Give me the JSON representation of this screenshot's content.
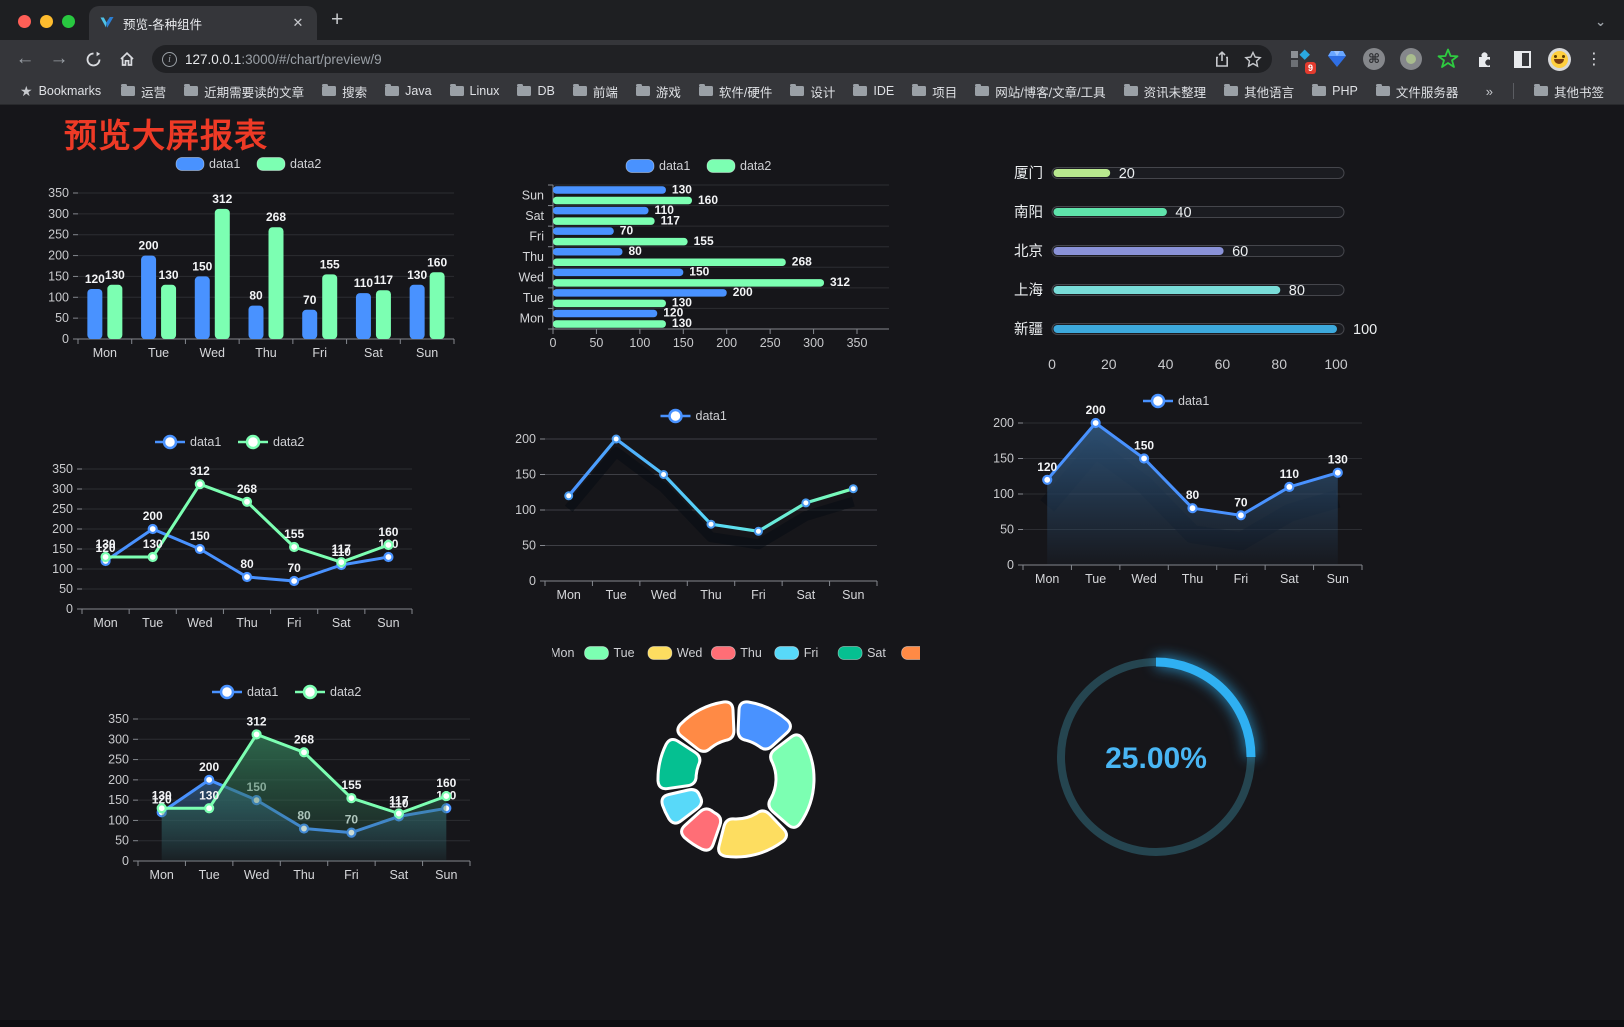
{
  "window": {
    "tab": {
      "title": "预览-各种组件"
    },
    "url": {
      "host": "127.0.0.1",
      "rest": ":3000/#/chart/preview/9"
    },
    "bookmarks_label": "Bookmarks",
    "bookmarks": [
      "运营",
      "近期需要读的文章",
      "搜索",
      "Java",
      "Linux",
      "DB",
      "前端",
      "游戏",
      "软件/硬件",
      "设计",
      "IDE",
      "项目",
      "网站/博客/文章/工具",
      "资讯未整理",
      "其他语言",
      "PHP",
      "文件服务器"
    ],
    "bookmarks_overflow": "»",
    "other_bookmarks": "其他书签",
    "extension_badge": "9"
  },
  "page": {
    "title": "预览大屏报表",
    "title_color": "#ee3a26"
  },
  "chart_data": [
    {
      "type": "bar",
      "categories": [
        "Mon",
        "Tue",
        "Wed",
        "Thu",
        "Fri",
        "Sat",
        "Sun"
      ],
      "series": [
        {
          "name": "data1",
          "color": "#4992ff",
          "values": [
            120,
            200,
            150,
            80,
            70,
            110,
            130
          ]
        },
        {
          "name": "data2",
          "color": "#7cffb2",
          "values": [
            130,
            130,
            312,
            268,
            155,
            117,
            160
          ]
        }
      ],
      "ylim": [
        0,
        350
      ],
      "ytick": 50,
      "legend_position": "top",
      "grid": true
    },
    {
      "type": "hbar",
      "categories": [
        "Mon",
        "Tue",
        "Wed",
        "Thu",
        "Fri",
        "Sat",
        "Sun"
      ],
      "series": [
        {
          "name": "data1",
          "color": "#4992ff",
          "values": [
            120,
            200,
            150,
            80,
            70,
            110,
            130
          ]
        },
        {
          "name": "data2",
          "color": "#7cffb2",
          "values": [
            130,
            130,
            312,
            268,
            155,
            117,
            160
          ]
        }
      ],
      "xlim": [
        0,
        350
      ],
      "xtick": 50,
      "legend_position": "top"
    },
    {
      "type": "progress",
      "items": [
        {
          "label": "厦门",
          "value": 20,
          "color": "#b9e88f"
        },
        {
          "label": "南阳",
          "value": 40,
          "color": "#5fe3ab"
        },
        {
          "label": "北京",
          "value": 60,
          "color": "#8a92d8"
        },
        {
          "label": "上海",
          "value": 80,
          "color": "#79dcd8"
        },
        {
          "label": "新疆",
          "value": 100,
          "color": "#3da9dc"
        }
      ],
      "xlim": [
        0,
        100
      ],
      "xtick": 20
    },
    {
      "type": "line",
      "categories": [
        "Mon",
        "Tue",
        "Wed",
        "Thu",
        "Fri",
        "Sat",
        "Sun"
      ],
      "series": [
        {
          "name": "data1",
          "color": "#4992ff",
          "values": [
            120,
            200,
            150,
            80,
            70,
            110,
            130
          ]
        },
        {
          "name": "data2",
          "color": "#7cffb2",
          "values": [
            130,
            130,
            312,
            268,
            155,
            117,
            160
          ]
        }
      ],
      "ylim": [
        0,
        350
      ],
      "ytick": 50,
      "show_labels": true,
      "legend_position": "top"
    },
    {
      "type": "line-gradient",
      "categories": [
        "Mon",
        "Tue",
        "Wed",
        "Thu",
        "Fri",
        "Sat",
        "Sun"
      ],
      "series": [
        {
          "name": "data1",
          "gradient": [
            "#4992ff",
            "#58d9f9",
            "#7cffb2"
          ],
          "color": "#4992ff",
          "values": [
            120,
            200,
            150,
            80,
            70,
            110,
            130
          ]
        }
      ],
      "ylim": [
        0,
        200
      ],
      "ytick": 50,
      "show_labels": false,
      "legend_position": "top"
    },
    {
      "type": "area",
      "categories": [
        "Mon",
        "Tue",
        "Wed",
        "Thu",
        "Fri",
        "Sat",
        "Sun"
      ],
      "series": [
        {
          "name": "data1",
          "color": "#4992ff",
          "fill": "#2e5378",
          "values": [
            120,
            200,
            150,
            80,
            70,
            110,
            130
          ]
        }
      ],
      "ylim": [
        0,
        200
      ],
      "ytick": 50,
      "show_labels": true,
      "legend_position": "top"
    },
    {
      "type": "area2",
      "categories": [
        "Mon",
        "Tue",
        "Wed",
        "Thu",
        "Fri",
        "Sat",
        "Sun"
      ],
      "series": [
        {
          "name": "data1",
          "color": "#4992ff",
          "fill": "#2e5378",
          "values": [
            120,
            200,
            150,
            80,
            70,
            110,
            130
          ]
        },
        {
          "name": "data2",
          "color": "#7cffb2",
          "fill": "#2f6e50",
          "values": [
            130,
            130,
            312,
            268,
            155,
            117,
            160
          ]
        }
      ],
      "ylim": [
        0,
        350
      ],
      "ytick": 50,
      "show_labels": true,
      "legend_position": "top"
    },
    {
      "type": "donut",
      "legend": [
        "Mon",
        "Tue",
        "Wed",
        "Thu",
        "Fri",
        "Sat",
        "Sun"
      ],
      "values": [
        120,
        200,
        150,
        80,
        70,
        110,
        130
      ],
      "colors": [
        "#4992ff",
        "#7cffb2",
        "#fddd60",
        "#ff6e76",
        "#58d9f9",
        "#05c091",
        "#ff8a45"
      ],
      "legend_position": "top"
    },
    {
      "type": "gauge",
      "value": 25,
      "label": "25.00%",
      "color": "#2fb0f2",
      "track_color": "#254550",
      "text_color": "#49b6f4"
    }
  ]
}
